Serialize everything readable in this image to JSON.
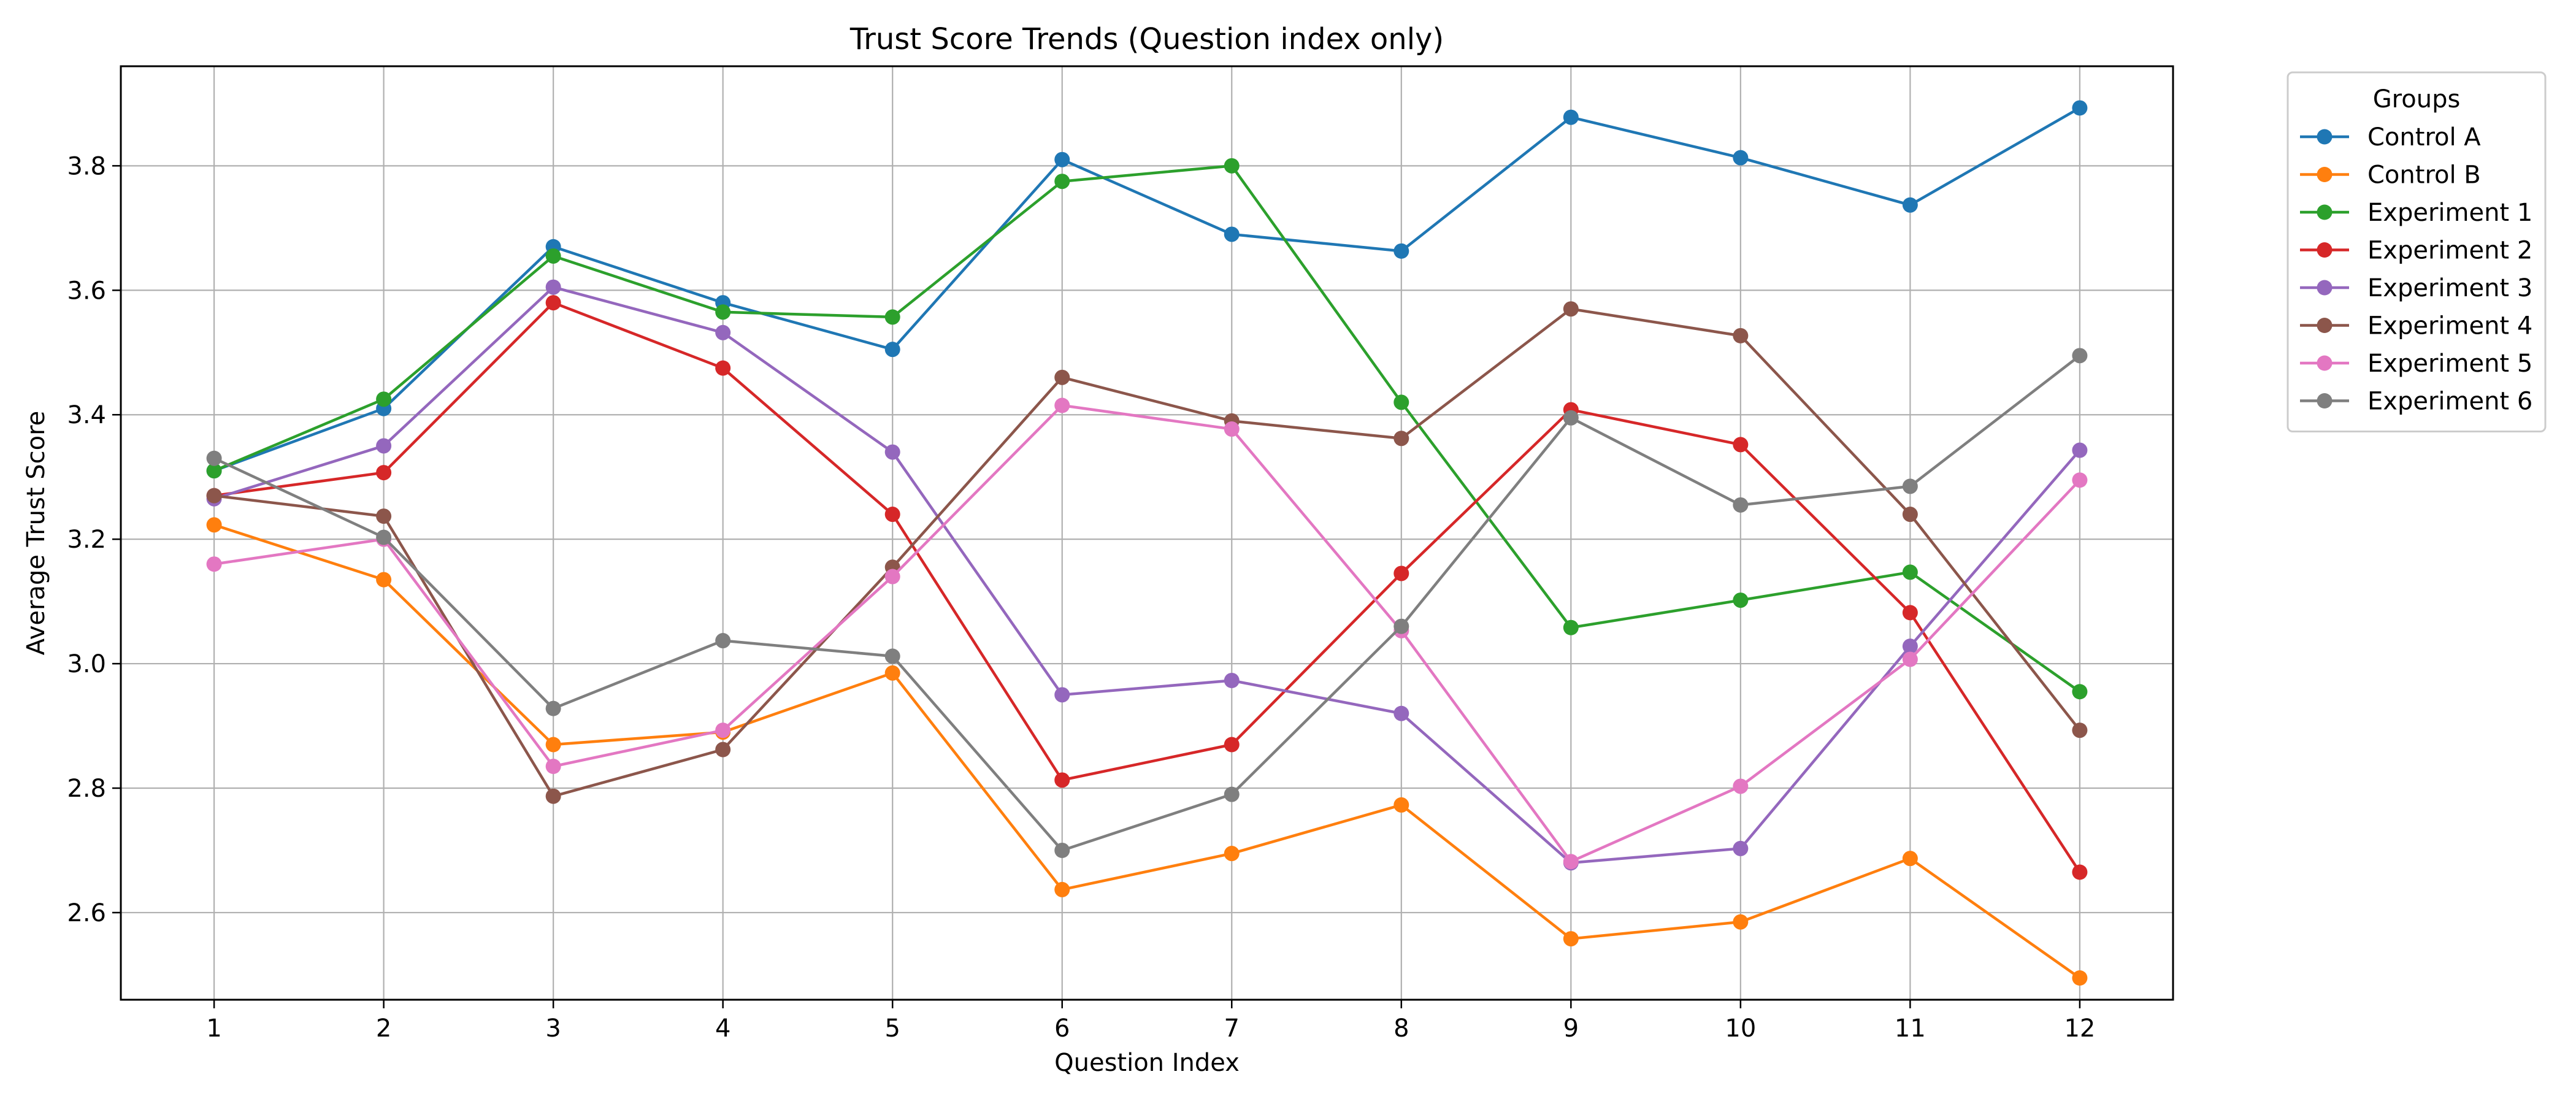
{
  "chart_data": {
    "type": "line",
    "title": "Trust Score Trends (Question index only)",
    "xlabel": "Question Index",
    "ylabel": "Average Trust Score",
    "x": [
      1,
      2,
      3,
      4,
      5,
      6,
      7,
      8,
      9,
      10,
      11,
      12
    ],
    "xlim": [
      0.45,
      12.55
    ],
    "ylim": [
      2.46,
      3.96
    ],
    "yticks": [
      2.6,
      2.8,
      3.0,
      3.2,
      3.4,
      3.6,
      3.8
    ],
    "ytick_labels": [
      "2.6",
      "2.8",
      "3.0",
      "3.2",
      "3.4",
      "3.6",
      "3.8"
    ],
    "xtick_labels": [
      "1",
      "2",
      "3",
      "4",
      "5",
      "6",
      "7",
      "8",
      "9",
      "10",
      "11",
      "12"
    ],
    "grid": true,
    "legend": {
      "title": "Groups",
      "placement": "outside upper right"
    },
    "series": [
      {
        "name": "Control A",
        "color": "#1f77b4",
        "values": [
          3.31,
          3.41,
          3.67,
          3.58,
          3.505,
          3.81,
          3.69,
          3.663,
          3.878,
          3.813,
          3.737,
          3.893
        ]
      },
      {
        "name": "Control B",
        "color": "#ff7f0e",
        "values": [
          3.223,
          3.135,
          2.87,
          2.89,
          2.985,
          2.637,
          2.695,
          2.773,
          2.558,
          2.585,
          2.687,
          2.495
        ]
      },
      {
        "name": "Experiment 1",
        "color": "#2ca02c",
        "values": [
          3.31,
          3.425,
          3.655,
          3.565,
          3.557,
          3.775,
          3.8,
          3.42,
          3.058,
          3.102,
          3.147,
          2.955
        ]
      },
      {
        "name": "Experiment 2",
        "color": "#d62728",
        "values": [
          3.27,
          3.307,
          3.58,
          3.475,
          3.24,
          2.813,
          2.87,
          3.145,
          3.408,
          3.352,
          3.082,
          2.665
        ]
      },
      {
        "name": "Experiment 3",
        "color": "#9467bd",
        "values": [
          3.265,
          3.35,
          3.605,
          3.532,
          3.34,
          2.95,
          2.973,
          2.92,
          2.68,
          2.703,
          3.028,
          3.343
        ]
      },
      {
        "name": "Experiment 4",
        "color": "#8c564b",
        "values": [
          3.27,
          3.237,
          2.787,
          2.862,
          3.155,
          3.46,
          3.39,
          3.362,
          3.57,
          3.527,
          3.24,
          2.893
        ]
      },
      {
        "name": "Experiment 5",
        "color": "#e377c2",
        "values": [
          3.16,
          3.2,
          2.835,
          2.893,
          3.14,
          3.415,
          3.377,
          3.053,
          2.682,
          2.803,
          3.007,
          3.295
        ]
      },
      {
        "name": "Experiment 6",
        "color": "#7f7f7f",
        "values": [
          3.33,
          3.203,
          2.928,
          3.037,
          3.012,
          2.7,
          2.79,
          3.06,
          3.395,
          3.255,
          3.285,
          3.495
        ]
      }
    ]
  }
}
